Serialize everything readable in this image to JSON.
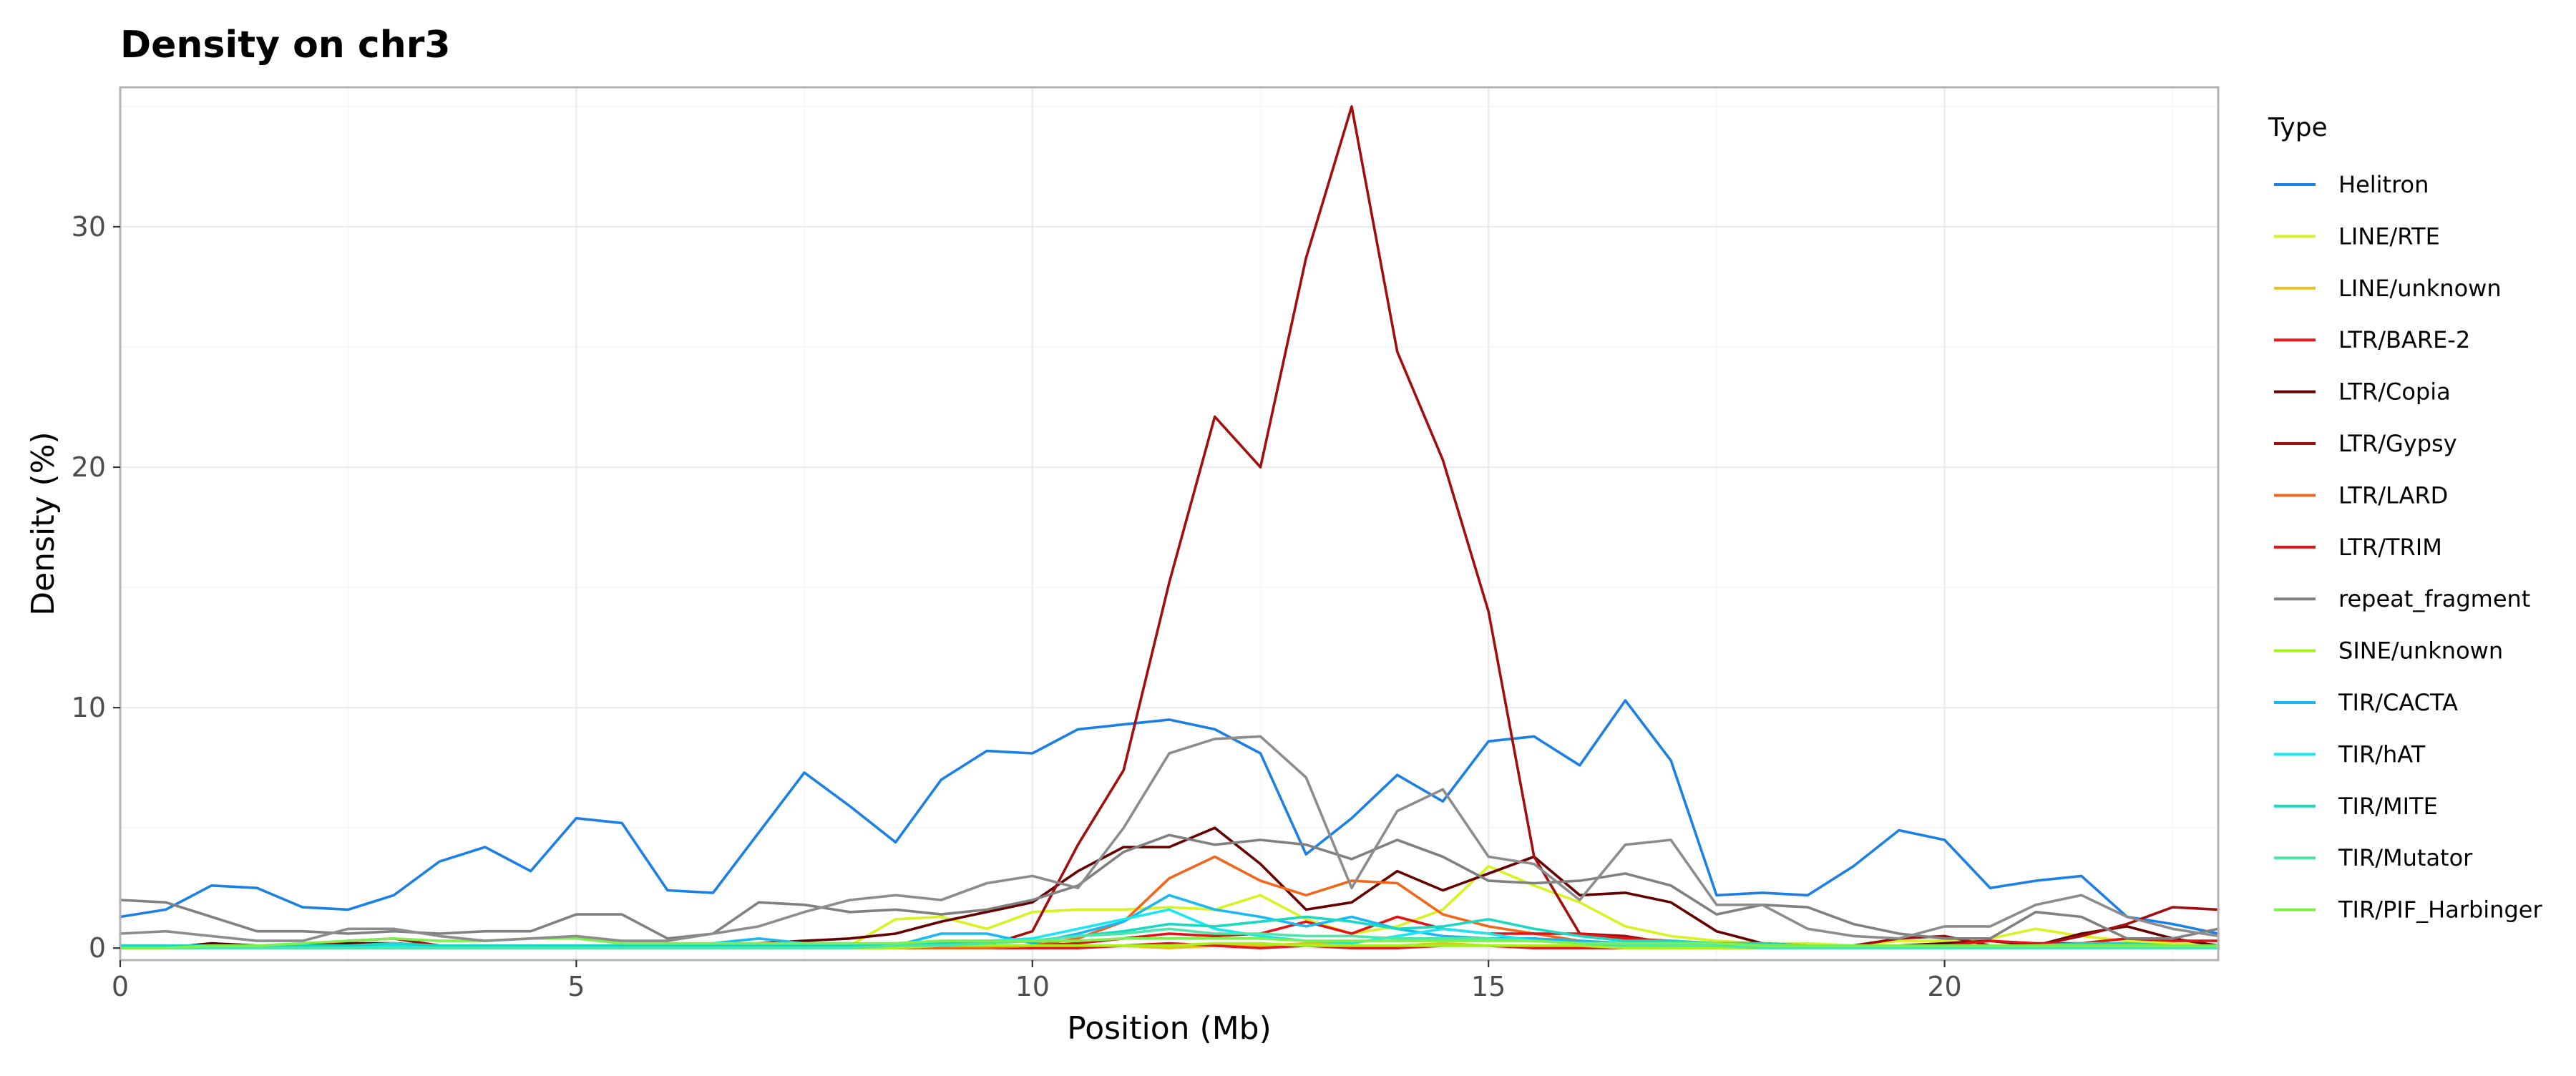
{
  "chart_data": {
    "type": "line",
    "title": "Density on chr3",
    "xlabel": "Position (Mb)",
    "ylabel": "Density (%)",
    "xlim": [
      0,
      23
    ],
    "ylim": [
      -0.5,
      35.8
    ],
    "xticks": [
      0,
      5,
      10,
      15,
      20
    ],
    "yticks": [
      0,
      10,
      20,
      30
    ],
    "grid": true,
    "legend_position": "right",
    "legend_title": "Type",
    "x": [
      0,
      0.5,
      1,
      1.5,
      2,
      2.5,
      3,
      3.5,
      4,
      4.5,
      5,
      5.5,
      6,
      6.5,
      7,
      7.5,
      8,
      8.5,
      9,
      9.5,
      10,
      10.5,
      11,
      11.5,
      12,
      12.5,
      13,
      13.5,
      14,
      14.5,
      15,
      15.5,
      16,
      16.5,
      17,
      17.5,
      18,
      18.5,
      19,
      19.5,
      20,
      20.5,
      21,
      21.5,
      22,
      22.5,
      23
    ],
    "series": [
      {
        "name": "Helitron",
        "color": "#1a80e6",
        "values": [
          1.3,
          1.6,
          2.6,
          2.5,
          1.7,
          1.6,
          2.2,
          3.6,
          4.2,
          3.2,
          5.4,
          5.2,
          2.4,
          2.3,
          4.8,
          7.3,
          5.9,
          4.4,
          7.0,
          8.2,
          8.1,
          9.1,
          9.3,
          9.5,
          9.1,
          8.1,
          3.9,
          5.4,
          7.2,
          6.1,
          8.6,
          8.8,
          7.6,
          10.3,
          7.8,
          2.2,
          2.3,
          2.2,
          3.4,
          4.9,
          4.5,
          2.5,
          2.8,
          3.0,
          1.3,
          1.0,
          0.6
        ]
      },
      {
        "name": "LINE/RTE",
        "color": "#d9f221",
        "values": [
          0.0,
          0.0,
          0.1,
          0.1,
          0.0,
          0.1,
          0.1,
          0.1,
          0.0,
          0.1,
          0.1,
          0.0,
          0.1,
          0.0,
          0.1,
          0.1,
          0.1,
          1.2,
          1.3,
          0.8,
          1.5,
          1.6,
          1.6,
          1.7,
          1.6,
          2.2,
          1.2,
          0.6,
          0.9,
          1.6,
          3.4,
          2.6,
          1.9,
          0.9,
          0.5,
          0.3,
          0.2,
          0.2,
          0.1,
          0.3,
          0.3,
          0.4,
          0.8,
          0.5,
          0.3,
          0.2,
          0.1
        ]
      },
      {
        "name": "LINE/unknown",
        "color": "#e6c21a",
        "values": [
          0.0,
          0.0,
          0.0,
          0.1,
          0.0,
          0.0,
          0.0,
          0.0,
          0.1,
          0.0,
          0.0,
          0.0,
          0.0,
          0.0,
          0.1,
          0.0,
          0.0,
          0.1,
          0.1,
          0.0,
          0.1,
          0.1,
          0.1,
          0.0,
          0.1,
          0.1,
          0.2,
          0.1,
          0.1,
          0.2,
          0.1,
          0.1,
          0.1,
          0.1,
          0.0,
          0.0,
          0.0,
          0.0,
          0.1,
          0.0,
          0.0,
          0.0,
          0.0,
          0.0,
          0.0,
          0.0,
          0.0
        ]
      },
      {
        "name": "LTR/BARE-2",
        "color": "#e61a1a",
        "values": [
          0.0,
          0.0,
          0.1,
          0.0,
          0.0,
          0.0,
          0.0,
          0.0,
          0.0,
          0.0,
          0.0,
          0.0,
          0.0,
          0.0,
          0.0,
          0.0,
          0.0,
          0.0,
          0.0,
          0.0,
          0.0,
          0.0,
          0.1,
          0.2,
          0.1,
          0.0,
          0.1,
          0.0,
          0.0,
          0.1,
          0.1,
          0.0,
          0.0,
          0.0,
          0.0,
          0.0,
          0.0,
          0.0,
          0.0,
          0.0,
          0.0,
          0.0,
          0.0,
          0.0,
          0.0,
          0.0,
          0.0
        ]
      },
      {
        "name": "LTR/Copia",
        "color": "#660000",
        "values": [
          0.0,
          0.0,
          0.2,
          0.1,
          0.1,
          0.2,
          0.2,
          0.1,
          0.1,
          0.1,
          0.1,
          0.1,
          0.1,
          0.1,
          0.2,
          0.3,
          0.4,
          0.6,
          1.1,
          1.5,
          1.9,
          3.2,
          4.2,
          4.2,
          5.0,
          3.5,
          1.6,
          1.9,
          3.2,
          2.4,
          3.1,
          3.8,
          2.2,
          2.3,
          1.9,
          0.7,
          0.2,
          0.1,
          0.1,
          0.1,
          0.2,
          0.3,
          0.1,
          0.6,
          0.9,
          0.4,
          0.1
        ]
      },
      {
        "name": "LTR/Gypsy",
        "color": "#a30d0d",
        "values": [
          0.0,
          0.0,
          0.0,
          0.0,
          0.0,
          0.3,
          0.4,
          0.1,
          0.0,
          0.1,
          0.0,
          0.0,
          0.0,
          0.0,
          0.0,
          0.0,
          0.0,
          0.0,
          0.0,
          0.1,
          0.7,
          4.3,
          7.4,
          15.2,
          22.1,
          20.0,
          28.7,
          35.0,
          24.8,
          20.3,
          14.0,
          3.8,
          0.6,
          0.5,
          0.2,
          0.1,
          0.1,
          0.1,
          0.1,
          0.4,
          0.5,
          0.1,
          0.1,
          0.5,
          1.0,
          1.7,
          1.6
        ]
      },
      {
        "name": "LTR/LARD",
        "color": "#f2661a",
        "values": [
          0.0,
          0.0,
          0.0,
          0.0,
          0.0,
          0.0,
          0.0,
          0.0,
          0.0,
          0.0,
          0.0,
          0.0,
          0.0,
          0.0,
          0.0,
          0.0,
          0.0,
          0.0,
          0.0,
          0.0,
          0.1,
          0.4,
          1.1,
          2.9,
          3.8,
          2.8,
          2.2,
          2.8,
          2.7,
          1.4,
          0.9,
          0.6,
          0.3,
          0.2,
          0.1,
          0.0,
          0.0,
          0.0,
          0.0,
          0.0,
          0.0,
          0.0,
          0.0,
          0.0,
          0.0,
          0.0,
          0.0
        ]
      },
      {
        "name": "LTR/TRIM",
        "color": "#e01414",
        "values": [
          0.0,
          0.1,
          0.1,
          0.1,
          0.1,
          0.1,
          0.1,
          0.1,
          0.1,
          0.1,
          0.1,
          0.1,
          0.1,
          0.1,
          0.1,
          0.1,
          0.1,
          0.1,
          0.1,
          0.1,
          0.1,
          0.2,
          0.4,
          0.6,
          0.5,
          0.6,
          1.1,
          0.6,
          1.3,
          0.8,
          0.6,
          0.6,
          0.6,
          0.4,
          0.3,
          0.2,
          0.2,
          0.1,
          0.1,
          0.1,
          0.1,
          0.3,
          0.2,
          0.2,
          0.4,
          0.3,
          0.3
        ]
      },
      {
        "name": "repeat_fragment",
        "color": "#808080",
        "values": [
          2.0,
          1.9,
          1.3,
          0.7,
          0.7,
          0.6,
          0.7,
          0.6,
          0.7,
          0.7,
          1.4,
          1.4,
          0.4,
          0.6,
          1.9,
          1.8,
          1.5,
          1.6,
          1.4,
          1.6,
          2.0,
          2.6,
          4.0,
          4.7,
          4.3,
          4.5,
          4.3,
          3.7,
          4.5,
          3.8,
          2.8,
          2.7,
          2.8,
          3.1,
          2.6,
          1.4,
          1.8,
          1.7,
          1.0,
          0.6,
          0.4,
          0.4,
          1.5,
          1.3,
          0.4,
          0.4,
          0.8
        ]
      },
      {
        "name": "SINE/unknown",
        "color": "#a8f21a",
        "values": [
          0.0,
          0.0,
          0.0,
          0.0,
          0.0,
          0.0,
          0.0,
          0.0,
          0.0,
          0.0,
          0.0,
          0.0,
          0.0,
          0.0,
          0.0,
          0.0,
          0.0,
          0.0,
          0.1,
          0.1,
          0.1,
          0.1,
          0.1,
          0.1,
          0.2,
          0.2,
          0.1,
          0.1,
          0.1,
          0.1,
          0.1,
          0.1,
          0.1,
          0.0,
          0.0,
          0.0,
          0.0,
          0.0,
          0.0,
          0.0,
          0.0,
          0.0,
          0.0,
          0.0,
          0.0,
          0.0,
          0.0
        ]
      },
      {
        "name": "TIR/CACTA",
        "color": "#1ab8f2",
        "values": [
          0.0,
          0.0,
          0.0,
          0.0,
          0.0,
          0.0,
          0.0,
          0.0,
          0.0,
          0.0,
          0.0,
          0.0,
          0.1,
          0.2,
          0.4,
          0.2,
          0.2,
          0.1,
          0.6,
          0.6,
          0.2,
          0.6,
          1.1,
          2.2,
          1.6,
          1.3,
          0.9,
          1.3,
          0.8,
          0.5,
          0.4,
          0.4,
          0.3,
          0.2,
          0.2,
          0.1,
          0.1,
          0.1,
          0.1,
          0.1,
          0.1,
          0.1,
          0.1,
          0.1,
          0.1,
          0.1,
          0.1
        ]
      },
      {
        "name": "TIR/hAT",
        "color": "#1ae6f2",
        "values": [
          0.1,
          0.1,
          0.1,
          0.1,
          0.1,
          0.1,
          0.1,
          0.1,
          0.1,
          0.1,
          0.1,
          0.1,
          0.1,
          0.1,
          0.1,
          0.1,
          0.1,
          0.2,
          0.3,
          0.3,
          0.4,
          0.8,
          1.2,
          1.6,
          0.8,
          0.5,
          0.3,
          0.2,
          0.5,
          0.8,
          0.6,
          0.3,
          0.2,
          0.1,
          0.1,
          0.1,
          0.1,
          0.1,
          0.1,
          0.1,
          0.1,
          0.1,
          0.1,
          0.1,
          0.1,
          0.1,
          0.1
        ]
      },
      {
        "name": "TIR/MITE",
        "color": "#1ad9c2",
        "values": [
          0.1,
          0.1,
          0.1,
          0.1,
          0.1,
          0.1,
          0.2,
          0.1,
          0.1,
          0.1,
          0.1,
          0.1,
          0.1,
          0.1,
          0.1,
          0.1,
          0.1,
          0.1,
          0.2,
          0.2,
          0.3,
          0.5,
          0.7,
          1.0,
          0.9,
          1.1,
          1.3,
          1.1,
          0.8,
          0.9,
          1.2,
          0.8,
          0.5,
          0.3,
          0.3,
          0.2,
          0.2,
          0.1,
          0.1,
          0.1,
          0.1,
          0.1,
          0.1,
          0.2,
          0.2,
          0.1,
          0.1
        ]
      },
      {
        "name": "TIR/Mutator",
        "color": "#4de6a8",
        "values": [
          0.0,
          0.0,
          0.0,
          0.0,
          0.0,
          0.0,
          0.0,
          0.0,
          0.0,
          0.0,
          0.0,
          0.0,
          0.0,
          0.0,
          0.0,
          0.0,
          0.0,
          0.1,
          0.1,
          0.2,
          0.3,
          0.5,
          0.6,
          0.8,
          0.6,
          0.6,
          0.5,
          0.5,
          0.4,
          0.4,
          0.4,
          0.3,
          0.2,
          0.1,
          0.1,
          0.1,
          0.0,
          0.0,
          0.0,
          0.0,
          0.0,
          0.0,
          0.0,
          0.0,
          0.0,
          0.0,
          0.0
        ]
      },
      {
        "name": "TIR/PIF_Harbinger",
        "color": "#7ef04d",
        "values": [
          0.0,
          0.0,
          0.1,
          0.1,
          0.2,
          0.3,
          0.4,
          0.3,
          0.3,
          0.4,
          0.4,
          0.2,
          0.2,
          0.2,
          0.2,
          0.2,
          0.2,
          0.2,
          0.3,
          0.3,
          0.3,
          0.3,
          0.4,
          0.4,
          0.4,
          0.4,
          0.3,
          0.3,
          0.3,
          0.3,
          0.3,
          0.3,
          0.2,
          0.2,
          0.2,
          0.2,
          0.1,
          0.1,
          0.1,
          0.1,
          0.1,
          0.1,
          0.1,
          0.1,
          0.1,
          0.1,
          0.1
        ]
      },
      {
        "name": "",
        "color": "#8c8c8c",
        "values": [
          0.6,
          0.7,
          0.5,
          0.3,
          0.3,
          0.8,
          0.8,
          0.5,
          0.3,
          0.4,
          0.5,
          0.3,
          0.3,
          0.6,
          0.9,
          1.5,
          2.0,
          2.2,
          2.0,
          2.7,
          3.0,
          2.5,
          5.0,
          8.1,
          8.7,
          8.8,
          7.1,
          2.5,
          5.7,
          6.6,
          3.8,
          3.5,
          2.0,
          4.3,
          4.5,
          1.8,
          1.8,
          0.8,
          0.5,
          0.4,
          0.9,
          0.9,
          1.8,
          2.2,
          1.3,
          0.8,
          0.5
        ]
      }
    ]
  }
}
